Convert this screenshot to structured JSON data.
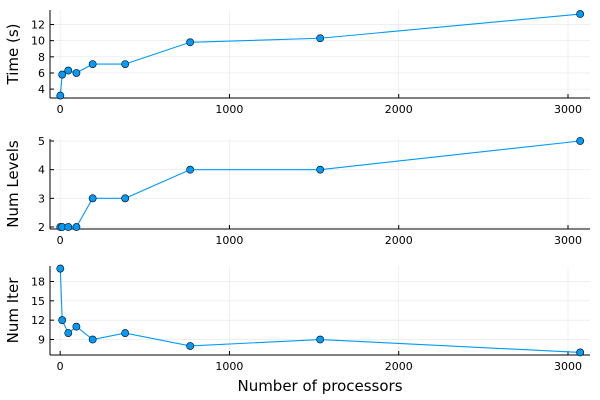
{
  "chart_data": [
    {
      "type": "line",
      "title": "",
      "xlabel": "",
      "ylabel": "Time (s)",
      "xlim": [
        -60,
        3130
      ],
      "ylim": [
        2.9,
        13.8
      ],
      "xticks": [
        0,
        1000,
        2000,
        3000
      ],
      "yticks": [
        4,
        6,
        8,
        10,
        12
      ],
      "grid": true,
      "legend": "none",
      "color": "#009AFA",
      "x": [
        1,
        12,
        48,
        96,
        192,
        384,
        768,
        1536,
        3072
      ],
      "y": [
        3.2,
        5.8,
        6.3,
        6.0,
        7.1,
        7.1,
        9.8,
        10.3,
        13.3
      ]
    },
    {
      "type": "line",
      "title": "",
      "xlabel": "",
      "ylabel": "Num Levels",
      "xlim": [
        -60,
        3130
      ],
      "ylim": [
        1.93,
        5.07
      ],
      "xticks": [
        0,
        1000,
        2000,
        3000
      ],
      "yticks": [
        2,
        3,
        4,
        5
      ],
      "grid": true,
      "legend": "none",
      "color": "#009AFA",
      "x": [
        1,
        12,
        48,
        96,
        192,
        384,
        768,
        1536,
        3072
      ],
      "y": [
        2,
        2,
        2,
        2,
        3,
        3,
        4,
        4,
        5
      ]
    },
    {
      "type": "line",
      "title": "",
      "xlabel": "Number of processors",
      "ylabel": "Num Iter",
      "xlim": [
        -60,
        3130
      ],
      "ylim": [
        6.6,
        20.4
      ],
      "xticks": [
        0,
        1000,
        2000,
        3000
      ],
      "yticks": [
        9,
        12,
        15,
        18
      ],
      "grid": true,
      "legend": "none",
      "color": "#009AFA",
      "x": [
        1,
        12,
        48,
        96,
        192,
        384,
        768,
        1536,
        3072
      ],
      "y": [
        20,
        12,
        10,
        11,
        9,
        10,
        8,
        9,
        7
      ]
    }
  ]
}
